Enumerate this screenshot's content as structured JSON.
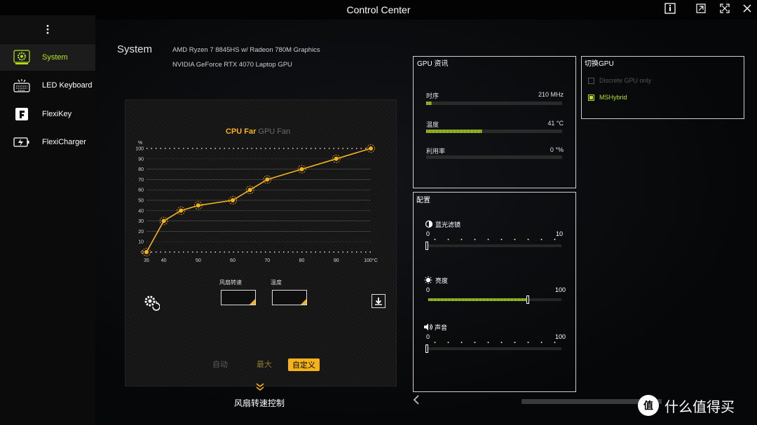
{
  "window": {
    "title": "Control Center"
  },
  "sidebar": {
    "items": [
      {
        "label": "System",
        "icon": "gear-icon",
        "active": true
      },
      {
        "label": "LED Keyboard",
        "icon": "keyboard-icon",
        "active": false
      },
      {
        "label": "FlexiKey",
        "icon": "flexikey-icon",
        "active": false
      },
      {
        "label": "FlexiCharger",
        "icon": "battery-charge-icon",
        "active": false
      }
    ]
  },
  "page": {
    "title": "System",
    "cpu": "AMD Ryzen 7 8845HS w/ Radeon 780M Graphics",
    "gpu": "NVIDIA GeForce RTX 4070 Laptop GPU"
  },
  "fan": {
    "tab_cpu": "CPU Far",
    "tab_gpu": "GPU Fan",
    "field_speed": "风扇转速",
    "field_temp": "温度",
    "mode_auto": "自动",
    "mode_max": "最大",
    "mode_custom": "自定义",
    "caption": "风扇转速控制"
  },
  "chart_data": {
    "type": "line",
    "title": "",
    "xlabel": "",
    "ylabel": "",
    "x_unit": "°C",
    "y_unit": "%",
    "x_ticks": [
      "35",
      "40",
      "50",
      "60",
      "70",
      "80",
      "90",
      "100°C"
    ],
    "y_ticks": [
      "0",
      "10",
      "20",
      "30",
      "40",
      "50",
      "60",
      "70",
      "80",
      "90",
      "100"
    ],
    "xlim": [
      35,
      100
    ],
    "ylim": [
      0,
      100
    ],
    "series": [
      {
        "x": [
          35,
          40,
          45,
          50,
          60,
          65,
          70,
          80,
          90,
          100
        ],
        "y": [
          0,
          30,
          40,
          45,
          50,
          60,
          70,
          80,
          90,
          100
        ]
      }
    ],
    "color": "#f6b21a"
  },
  "gpu_info": {
    "title": "GPU 资讯",
    "stats": [
      {
        "label": "时序",
        "value": "210 MHz",
        "fraction": 0.04
      },
      {
        "label": "温度",
        "value": "41 °C",
        "fraction": 0.41
      },
      {
        "label": "利用率",
        "value": "0 °%",
        "fraction": 0.0
      }
    ]
  },
  "gpu_switch": {
    "title": "切换GPU",
    "options": [
      {
        "label": "Discrete GPU only",
        "checked": false
      },
      {
        "label": "MSHybrid",
        "checked": true
      }
    ]
  },
  "config": {
    "title": "配置",
    "sliders": [
      {
        "label": "蓝光滤镜",
        "min": "0",
        "max": "10",
        "value": 0,
        "icon": "blue-light-icon"
      },
      {
        "label": "亮度",
        "min": "0",
        "max": "100",
        "value": 76,
        "icon": "brightness-icon"
      },
      {
        "label": "声音",
        "min": "0",
        "max": "100",
        "value": 0,
        "icon": "speaker-icon"
      }
    ]
  },
  "watermark": {
    "text": "什么值得买",
    "logo": "值"
  },
  "colors": {
    "accent_green": "#b8e31a",
    "accent_orange": "#f6b21a"
  }
}
